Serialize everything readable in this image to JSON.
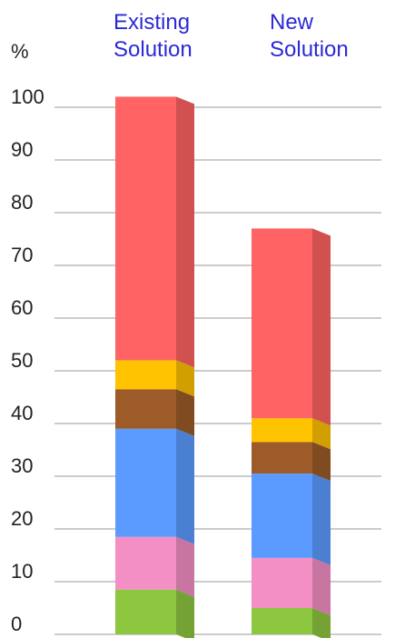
{
  "chart_data": {
    "type": "bar",
    "stacked": true,
    "style": "3d",
    "ylabel": "%",
    "ylim": [
      0,
      100
    ],
    "yticks": [
      0,
      10,
      20,
      30,
      40,
      50,
      60,
      70,
      80,
      90,
      100
    ],
    "grid": true,
    "categories": [
      {
        "lines": [
          "Existing",
          "Solution"
        ]
      },
      {
        "lines": [
          "New",
          "Solution"
        ]
      }
    ],
    "series": [
      {
        "color": "#8dc63f",
        "values": [
          8.5,
          5.0
        ]
      },
      {
        "color": "#f48fc6",
        "values": [
          10.0,
          9.5
        ]
      },
      {
        "color": "#5b9bff",
        "values": [
          20.5,
          16.0
        ]
      },
      {
        "color": "#9c5b28",
        "values": [
          7.5,
          6.0
        ]
      },
      {
        "color": "#ffc300",
        "values": [
          5.5,
          4.5
        ]
      },
      {
        "color": "#ff6363",
        "values": [
          50.0,
          36.0
        ]
      }
    ]
  }
}
